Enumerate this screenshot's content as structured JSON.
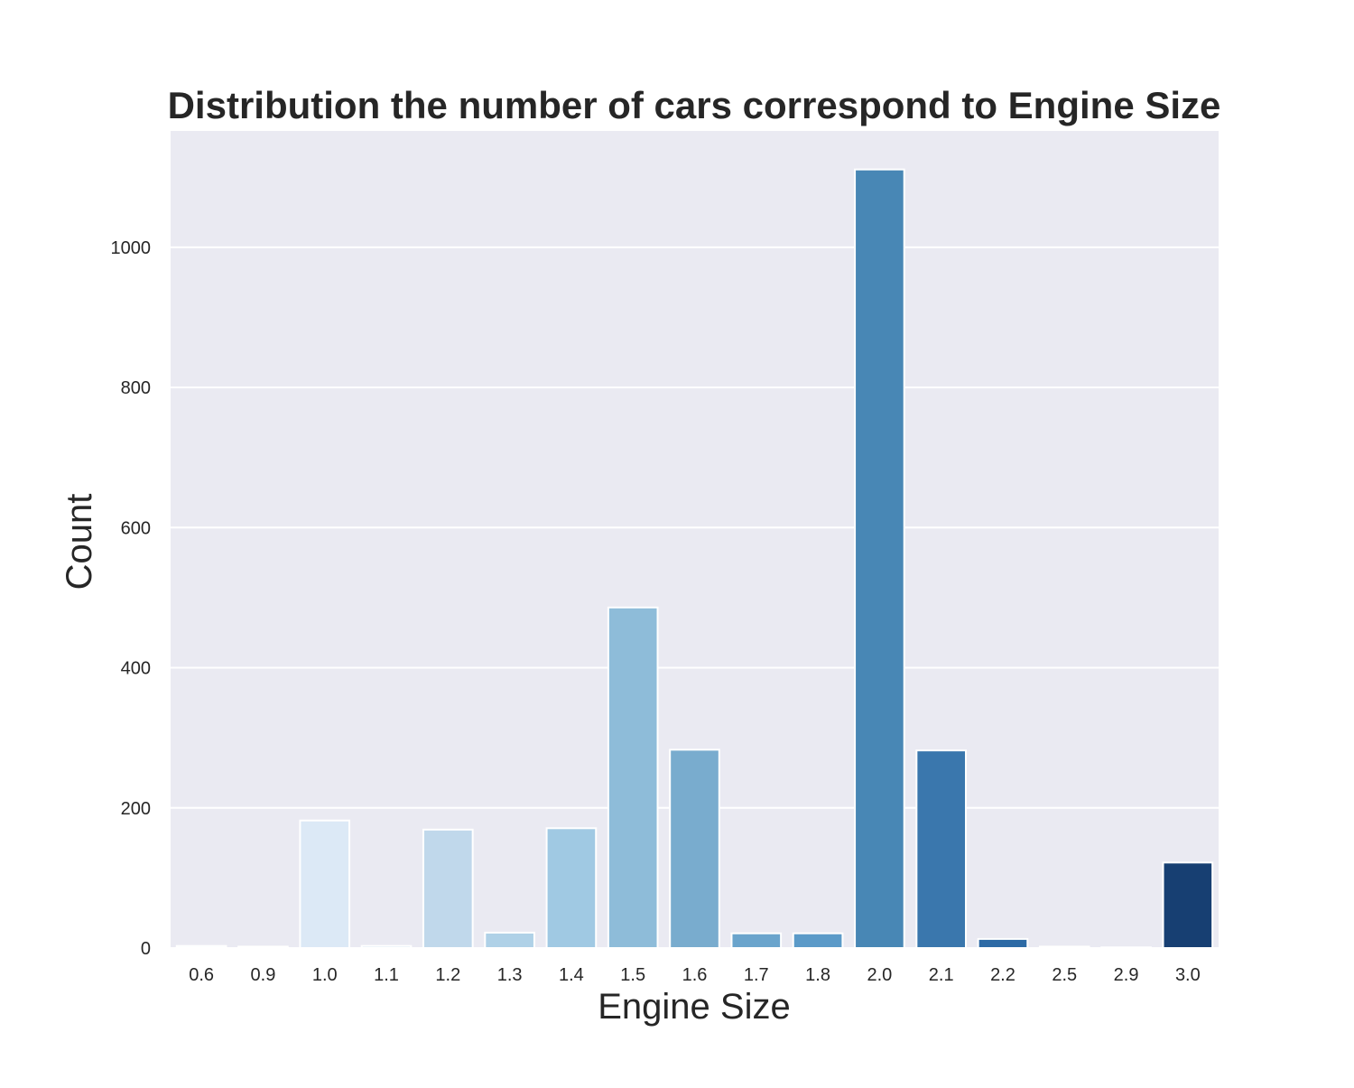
{
  "chart_data": {
    "type": "bar",
    "title": "Distribution the number of cars correspond to Engine Size",
    "xlabel": "Engine Size",
    "ylabel": "Count",
    "categories": [
      "0.6",
      "0.9",
      "1.0",
      "1.1",
      "1.2",
      "1.3",
      "1.4",
      "1.5",
      "1.6",
      "1.7",
      "1.8",
      "2.0",
      "2.1",
      "2.2",
      "2.5",
      "2.9",
      "3.0"
    ],
    "values": [
      3,
      2,
      182,
      3,
      169,
      22,
      171,
      486,
      283,
      21,
      21,
      1111,
      282,
      13,
      2,
      1,
      122
    ],
    "ylim": [
      0,
      1166
    ],
    "yticks": [
      0,
      200,
      400,
      600,
      800,
      1000
    ],
    "grid": true,
    "colors": [
      "#f7fbff",
      "#eaf2fb",
      "#dce9f6",
      "#cfe1f2",
      "#c0d8eb",
      "#afd1e7",
      "#a0c9e3",
      "#8ebcd9",
      "#79acce",
      "#6aa4cc",
      "#5b9ac8",
      "#4887b5",
      "#3a77ad",
      "#2d6aa5",
      "#225a94",
      "#1a4d85",
      "#173f72"
    ],
    "background": "#eaeaf2",
    "gridColor": "#ffffff"
  }
}
